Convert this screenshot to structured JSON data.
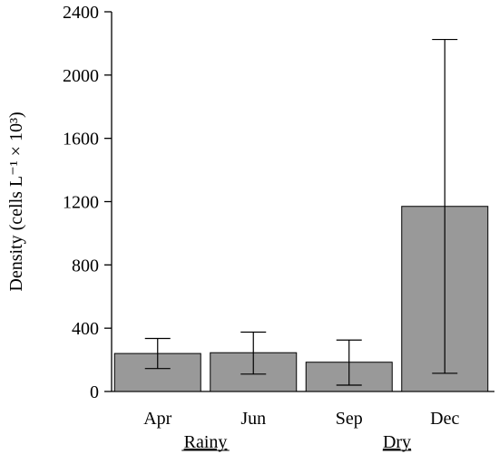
{
  "chart_data": {
    "type": "bar",
    "categories": [
      "Apr",
      "Jun",
      "Sep",
      "Dec"
    ],
    "values": [
      240,
      245,
      185,
      1170
    ],
    "error_low": [
      145,
      110,
      40,
      115
    ],
    "error_high": [
      335,
      375,
      325,
      2225
    ],
    "groups": [
      {
        "label": "Rainy",
        "categories": [
          "Apr",
          "Jun"
        ]
      },
      {
        "label": "Dry",
        "categories": [
          "Sep",
          "Dec"
        ]
      }
    ],
    "ylabel": "Density (cells L⁻¹ × 10³)",
    "ylim": [
      0,
      2400
    ],
    "yticks": [
      0,
      400,
      800,
      1200,
      1600,
      2000,
      2400
    ],
    "ytick_labels": [
      "0",
      "400",
      "800",
      "1200",
      "1600",
      "2000",
      "2400"
    ],
    "grid": false,
    "colors": {
      "bar_fill": "#999999",
      "bar_stroke": "#000000",
      "axis": "#000000"
    }
  }
}
